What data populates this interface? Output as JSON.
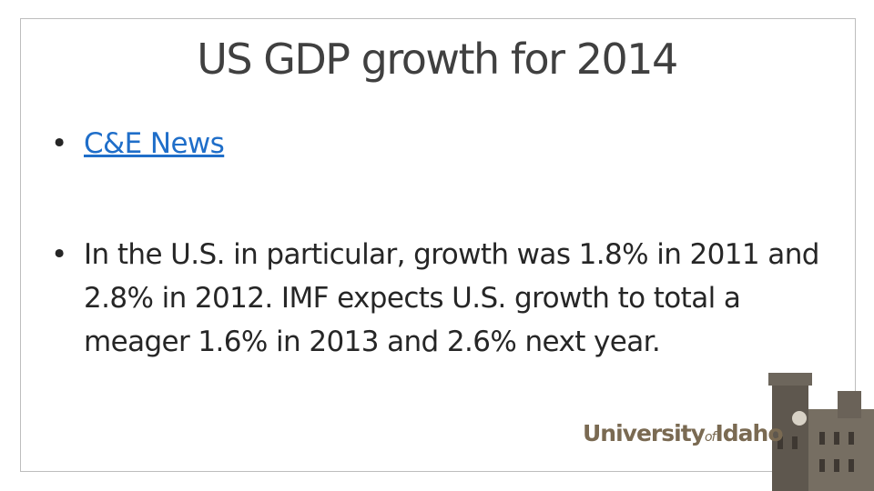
{
  "slide": {
    "title": "US GDP growth for 2014",
    "bullets": [
      {
        "text": "C&E News",
        "link": true
      },
      {
        "text": "In the U.S. in particular, growth was 1.8% in 2011 and 2.8% in 2012. IMF expects U.S. growth to total a meager 1.6% in 2013 and 2.6% next year.",
        "link": false
      }
    ],
    "logo": {
      "name": "University",
      "of": "of",
      "place": "Idaho"
    }
  }
}
